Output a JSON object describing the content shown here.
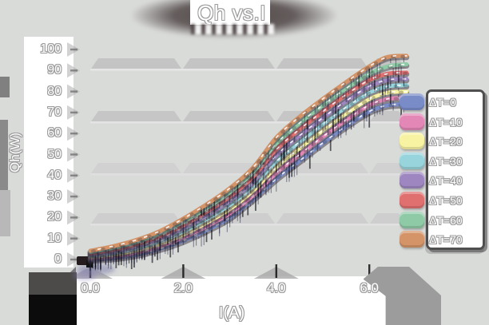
{
  "title": "Qh vs.I",
  "axes": {
    "x_label": "I(A)",
    "y_label": "Qh(W)",
    "x_tick_labels": [
      "0.0",
      "2.0",
      "4.0",
      "6.0"
    ],
    "y_tick_labels": [
      "0",
      "10",
      "20",
      "30",
      "40",
      "50",
      "60",
      "70",
      "80",
      "90",
      "100"
    ]
  },
  "legend": {
    "entries": [
      {
        "label": "ΔT=0",
        "color": "#7a8cc8"
      },
      {
        "label": "ΔT=10",
        "color": "#e287b6"
      },
      {
        "label": "ΔT=20",
        "color": "#f8f3a3"
      },
      {
        "label": "ΔT=30",
        "color": "#98d4dc"
      },
      {
        "label": "ΔT=40",
        "color": "#9e87c1"
      },
      {
        "label": "ΔT=50",
        "color": "#e06f6f"
      },
      {
        "label": "ΔT=60",
        "color": "#8fcaa7"
      },
      {
        "label": "ΔT=70",
        "color": "#d49468"
      }
    ]
  },
  "chart_data": {
    "type": "line",
    "title": "Qh vs.I",
    "xlabel": "I(A)",
    "ylabel": "Qh(W)",
    "xlim": [
      0,
      6.8
    ],
    "ylim": [
      0,
      100
    ],
    "x_ticks": [
      0,
      2,
      4,
      6
    ],
    "y_ticks": [
      0,
      10,
      20,
      30,
      40,
      50,
      60,
      70,
      80,
      90,
      100
    ],
    "grid": "thick gray horizontal bands",
    "legend_position": "right",
    "series": [
      {
        "name": "ΔT=0",
        "color": "#7a8cc8",
        "points": [
          [
            0,
            0
          ],
          [
            0.5,
            0.8
          ],
          [
            1,
            2.4
          ],
          [
            1.5,
            5.2
          ],
          [
            2,
            9
          ],
          [
            2.5,
            14
          ],
          [
            3,
            20
          ],
          [
            3.5,
            28.7
          ],
          [
            4,
            38.5
          ],
          [
            4.5,
            47
          ],
          [
            5,
            55.5
          ],
          [
            5.5,
            63.5
          ],
          [
            6,
            70.5
          ],
          [
            6.4,
            73.5
          ],
          [
            6.8,
            74
          ]
        ]
      },
      {
        "name": "ΔT=10",
        "color": "#e287b6",
        "points": [
          [
            0,
            0.6
          ],
          [
            0.5,
            1.6
          ],
          [
            1,
            3.4
          ],
          [
            1.5,
            6.4
          ],
          [
            2,
            10.5
          ],
          [
            2.5,
            15.8
          ],
          [
            3,
            22
          ],
          [
            3.5,
            30.5
          ],
          [
            4,
            41.3
          ],
          [
            4.5,
            50
          ],
          [
            5,
            58.5
          ],
          [
            5.5,
            66.5
          ],
          [
            6,
            73.5
          ],
          [
            6.4,
            76.5
          ],
          [
            6.8,
            77
          ]
        ]
      },
      {
        "name": "ΔT=20",
        "color": "#f8f3a3",
        "points": [
          [
            0,
            1.2
          ],
          [
            0.5,
            2.4
          ],
          [
            1,
            4.4
          ],
          [
            1.5,
            7.6
          ],
          [
            2,
            12
          ],
          [
            2.5,
            17.5
          ],
          [
            3,
            24
          ],
          [
            3.5,
            32.8
          ],
          [
            4,
            44.1
          ],
          [
            4.5,
            53
          ],
          [
            5,
            61.5
          ],
          [
            5.5,
            69.5
          ],
          [
            6,
            76.5
          ],
          [
            6.4,
            79.5
          ],
          [
            6.8,
            80
          ]
        ]
      },
      {
        "name": "ΔT=30",
        "color": "#98d4dc",
        "points": [
          [
            0,
            1.8
          ],
          [
            0.5,
            3.2
          ],
          [
            1,
            5.4
          ],
          [
            1.5,
            8.8
          ],
          [
            2,
            13.5
          ],
          [
            2.5,
            19.3
          ],
          [
            3,
            26
          ],
          [
            3.5,
            35
          ],
          [
            4,
            46.9
          ],
          [
            4.5,
            56
          ],
          [
            5,
            64.5
          ],
          [
            5.5,
            72.5
          ],
          [
            6,
            79.5
          ],
          [
            6.4,
            82.5
          ],
          [
            6.8,
            83
          ]
        ]
      },
      {
        "name": "ΔT=40",
        "color": "#9e87c1",
        "points": [
          [
            0,
            2.4
          ],
          [
            0.5,
            4
          ],
          [
            1,
            6.4
          ],
          [
            1.5,
            10
          ],
          [
            2,
            15
          ],
          [
            2.5,
            21
          ],
          [
            3,
            28
          ],
          [
            3.5,
            37.2
          ],
          [
            4,
            49.7
          ],
          [
            4.5,
            59
          ],
          [
            5,
            67.5
          ],
          [
            5.5,
            75.5
          ],
          [
            6,
            82.5
          ],
          [
            6.4,
            85.5
          ],
          [
            6.8,
            86
          ]
        ]
      },
      {
        "name": "ΔT=50",
        "color": "#e06f6f",
        "points": [
          [
            0,
            3
          ],
          [
            0.5,
            4.8
          ],
          [
            1,
            7.4
          ],
          [
            1.5,
            11.2
          ],
          [
            2,
            16.5
          ],
          [
            2.5,
            22.8
          ],
          [
            3,
            30
          ],
          [
            3.5,
            39.4
          ],
          [
            4,
            52.5
          ],
          [
            4.5,
            62
          ],
          [
            5,
            70.5
          ],
          [
            5.5,
            78.5
          ],
          [
            6,
            85.5
          ],
          [
            6.4,
            88.5
          ],
          [
            6.8,
            89
          ]
        ]
      },
      {
        "name": "ΔT=60",
        "color": "#8fcaa7",
        "points": [
          [
            0,
            3.6
          ],
          [
            0.5,
            5.6
          ],
          [
            1,
            8.4
          ],
          [
            1.5,
            12.4
          ],
          [
            2,
            18
          ],
          [
            2.5,
            24.5
          ],
          [
            3,
            32
          ],
          [
            3.5,
            41.6
          ],
          [
            4,
            55.3
          ],
          [
            4.5,
            65
          ],
          [
            5,
            73.5
          ],
          [
            5.5,
            81.5
          ],
          [
            6,
            88.5
          ],
          [
            6.4,
            92
          ],
          [
            6.8,
            93
          ]
        ]
      },
      {
        "name": "ΔT=70",
        "color": "#d49468",
        "points": [
          [
            0,
            4.2
          ],
          [
            0.5,
            6.4
          ],
          [
            1,
            9.4
          ],
          [
            1.5,
            13.6
          ],
          [
            2,
            19.5
          ],
          [
            2.5,
            26.3
          ],
          [
            3,
            34
          ],
          [
            3.5,
            43.8
          ],
          [
            4,
            58.1
          ],
          [
            4.5,
            68
          ],
          [
            5,
            76.5
          ],
          [
            5.5,
            84.5
          ],
          [
            6,
            92
          ],
          [
            6.4,
            96.5
          ],
          [
            6.8,
            97
          ]
        ]
      }
    ]
  }
}
